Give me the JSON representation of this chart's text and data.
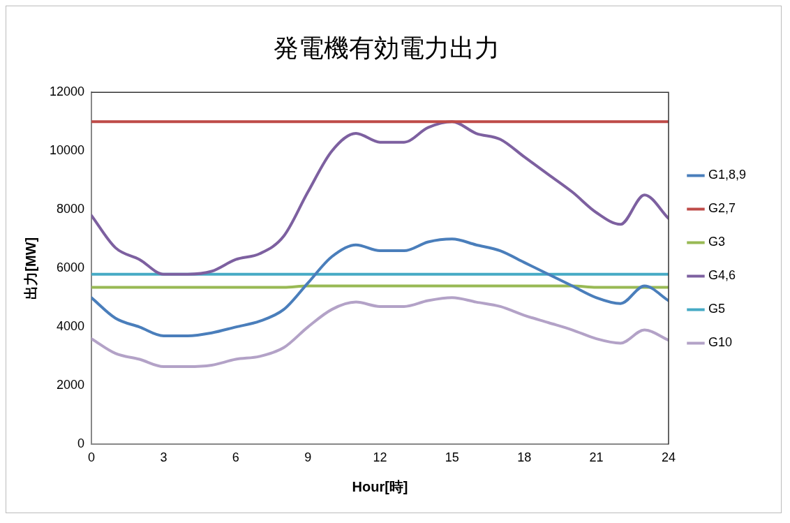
{
  "chart_data": {
    "type": "line",
    "title": "発電機有効電力出力",
    "xlabel": "Hour[時]",
    "ylabel": "出力[MW]",
    "x": [
      0,
      1,
      2,
      3,
      4,
      5,
      6,
      7,
      8,
      9,
      10,
      11,
      12,
      13,
      14,
      15,
      16,
      17,
      18,
      19,
      20,
      21,
      22,
      23,
      24
    ],
    "series": [
      {
        "name": "G1,8,9",
        "color": "#4a7ebb",
        "values": [
          5000,
          4300,
          4000,
          3700,
          3700,
          3800,
          4000,
          4200,
          4600,
          5500,
          6400,
          6800,
          6600,
          6600,
          6900,
          7000,
          6800,
          6600,
          6200,
          5800,
          5400,
          5000,
          4800,
          5400,
          4900
        ]
      },
      {
        "name": "G2,7",
        "color": "#be4b48",
        "values": [
          11000,
          11000,
          11000,
          11000,
          11000,
          11000,
          11000,
          11000,
          11000,
          11000,
          11000,
          11000,
          11000,
          11000,
          11000,
          11000,
          11000,
          11000,
          11000,
          11000,
          11000,
          11000,
          11000,
          11000,
          11000
        ]
      },
      {
        "name": "G3",
        "color": "#98b954",
        "values": [
          5350,
          5350,
          5350,
          5350,
          5350,
          5350,
          5350,
          5350,
          5350,
          5400,
          5400,
          5400,
          5400,
          5400,
          5400,
          5400,
          5400,
          5400,
          5400,
          5400,
          5400,
          5350,
          5350,
          5350,
          5350
        ]
      },
      {
        "name": "G4,6",
        "color": "#7d60a0",
        "values": [
          7800,
          6700,
          6300,
          5800,
          5800,
          5900,
          6300,
          6500,
          7100,
          8600,
          10000,
          10600,
          10300,
          10300,
          10800,
          11000,
          10600,
          10400,
          9800,
          9200,
          8600,
          7900,
          7500,
          8500,
          7700
        ]
      },
      {
        "name": "G5",
        "color": "#46aac5",
        "values": [
          5800,
          5800,
          5800,
          5800,
          5800,
          5800,
          5800,
          5800,
          5800,
          5800,
          5800,
          5800,
          5800,
          5800,
          5800,
          5800,
          5800,
          5800,
          5800,
          5800,
          5800,
          5800,
          5800,
          5800,
          5800
        ]
      },
      {
        "name": "G10",
        "color": "#b3a2c7",
        "values": [
          3600,
          3100,
          2900,
          2650,
          2650,
          2700,
          2900,
          3000,
          3300,
          4000,
          4600,
          4850,
          4700,
          4700,
          4900,
          5000,
          4850,
          4700,
          4400,
          4150,
          3900,
          3600,
          3450,
          3900,
          3550
        ]
      }
    ],
    "xlim": [
      0,
      24
    ],
    "xticks": [
      0,
      3,
      6,
      9,
      12,
      15,
      18,
      21,
      24
    ],
    "ylim": [
      0,
      12000
    ],
    "yticks": [
      0,
      2000,
      4000,
      6000,
      8000,
      10000,
      12000
    ],
    "grid": false,
    "legend": "right",
    "marker": "none",
    "line_style": "solid"
  }
}
